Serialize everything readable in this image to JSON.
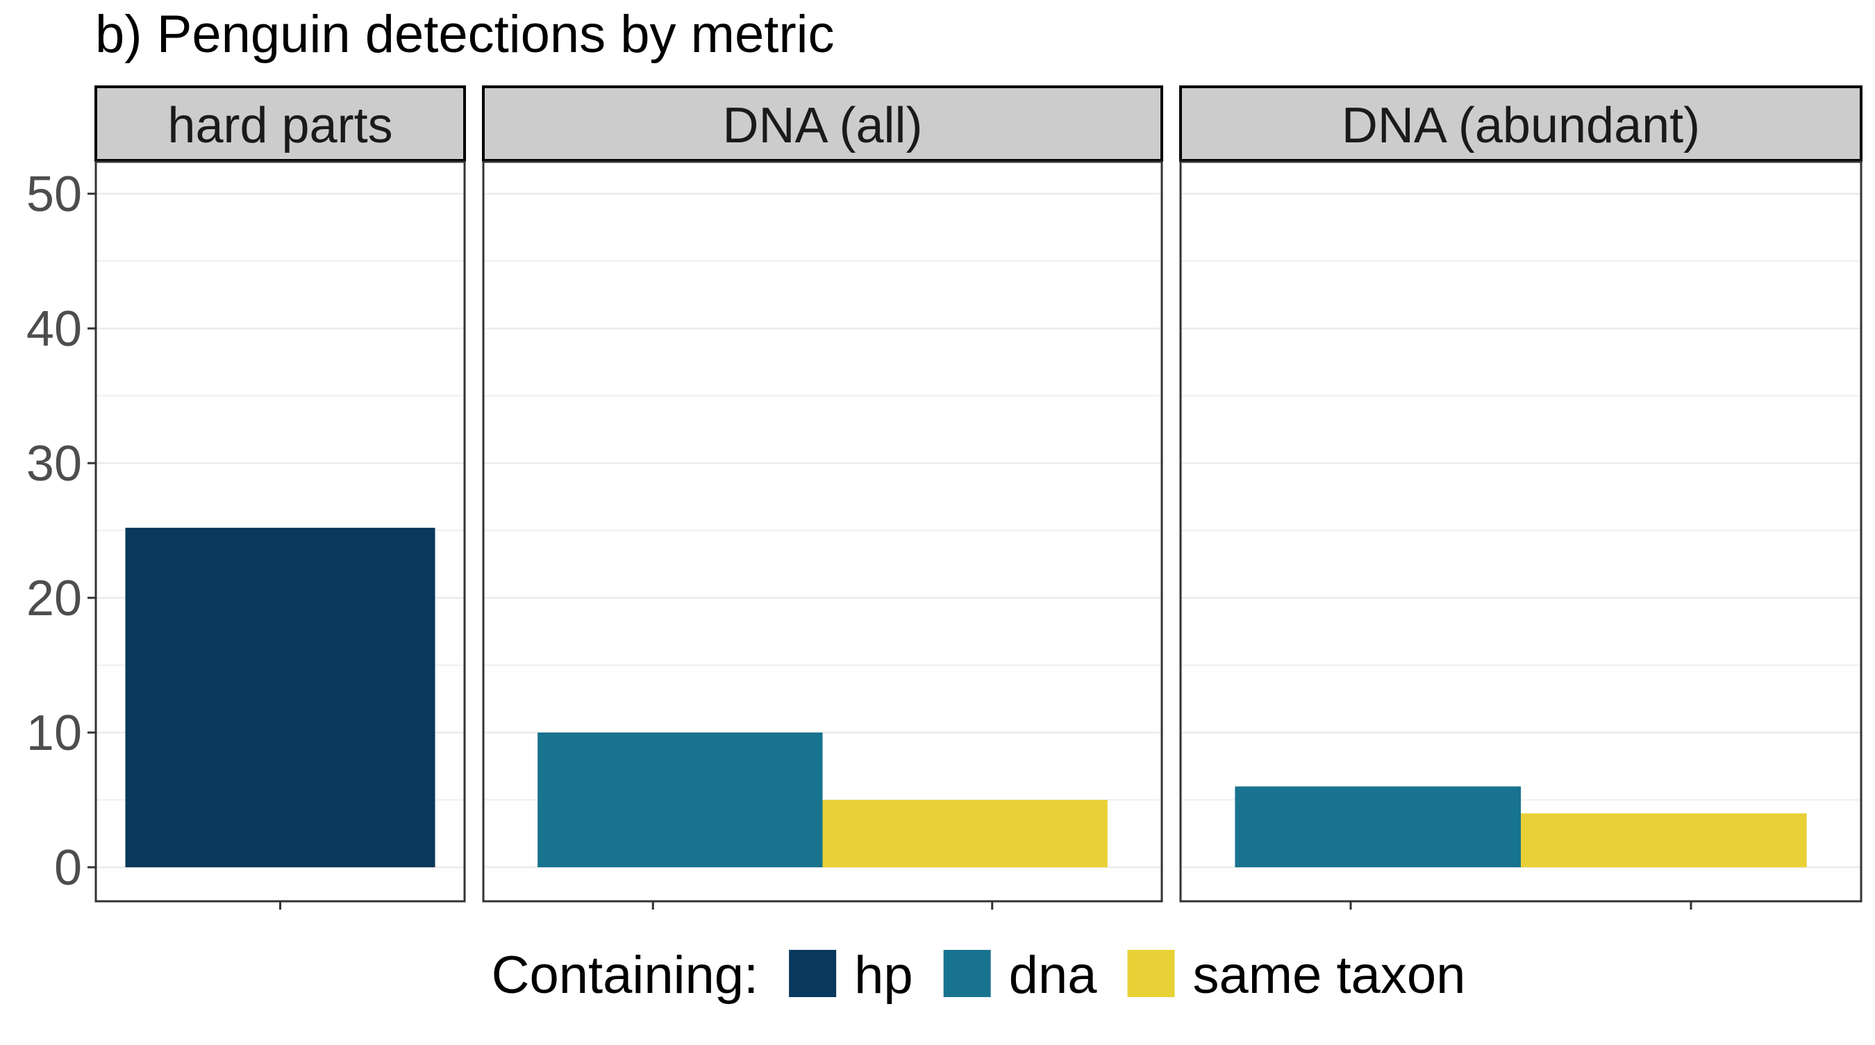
{
  "chart_data": {
    "type": "bar",
    "title": "b) Penguin detections by metric",
    "xlabel": "",
    "ylabel": "",
    "ylim": [
      0,
      53
    ],
    "yticks": [
      0,
      10,
      20,
      30,
      40,
      50
    ],
    "grid": true,
    "legend_position": "bottom",
    "legend_title": "Containing:",
    "legend": [
      {
        "label": "hp",
        "color": "#08385B"
      },
      {
        "label": "dna",
        "color": "#18738F"
      },
      {
        "label": "same taxon",
        "color": "#E8D136"
      }
    ],
    "panels": [
      {
        "label": "hard parts",
        "bars": [
          {
            "group": "hp",
            "value": 25.2
          }
        ]
      },
      {
        "label": "DNA (all)",
        "bars": [
          {
            "group": "dna",
            "value": 10
          },
          {
            "group": "same taxon",
            "value": 5
          }
        ]
      },
      {
        "label": "DNA (abundant)",
        "bars": [
          {
            "group": "dna",
            "value": 6
          },
          {
            "group": "same taxon",
            "value": 4
          }
        ]
      }
    ]
  }
}
